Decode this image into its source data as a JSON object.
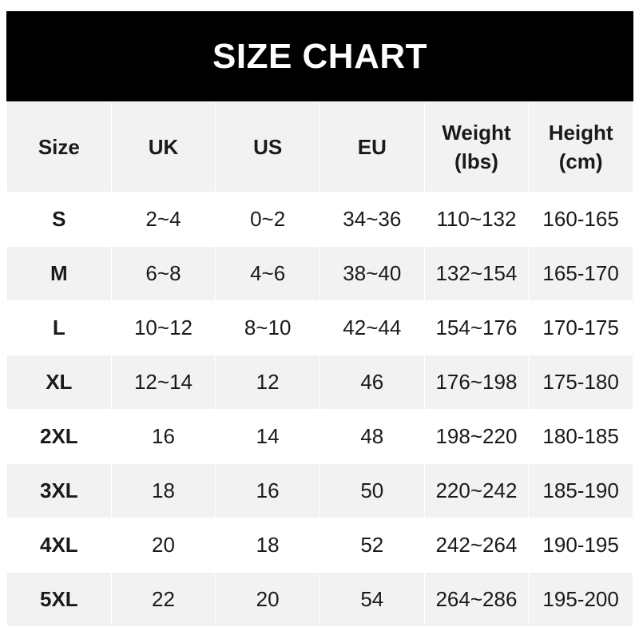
{
  "title": "SIZE CHART",
  "headers": [
    "Size",
    "UK",
    "US",
    "EU",
    "Weight\n(lbs)",
    "Height\n(cm)"
  ],
  "header_lines": [
    [
      "Size"
    ],
    [
      "UK"
    ],
    [
      "US"
    ],
    [
      "EU"
    ],
    [
      "Weight",
      "(lbs)"
    ],
    [
      "Height",
      "(cm)"
    ]
  ],
  "rows": [
    [
      "S",
      "2~4",
      "0~2",
      "34~36",
      "110~132",
      "160-165"
    ],
    [
      "M",
      "6~8",
      "4~6",
      "38~40",
      "132~154",
      "165-170"
    ],
    [
      "L",
      "10~12",
      "8~10",
      "42~44",
      "154~176",
      "170-175"
    ],
    [
      "XL",
      "12~14",
      "12",
      "46",
      "176~198",
      "175-180"
    ],
    [
      "2XL",
      "16",
      "14",
      "48",
      "198~220",
      "180-185"
    ],
    [
      "3XL",
      "18",
      "16",
      "50",
      "220~242",
      "185-190"
    ],
    [
      "4XL",
      "20",
      "18",
      "52",
      "242~264",
      "190-195"
    ],
    [
      "5XL",
      "22",
      "20",
      "54",
      "264~286",
      "195-200"
    ]
  ],
  "colors": {
    "title_bg": "#000000",
    "alt_row_bg": "#f2f2f2"
  }
}
